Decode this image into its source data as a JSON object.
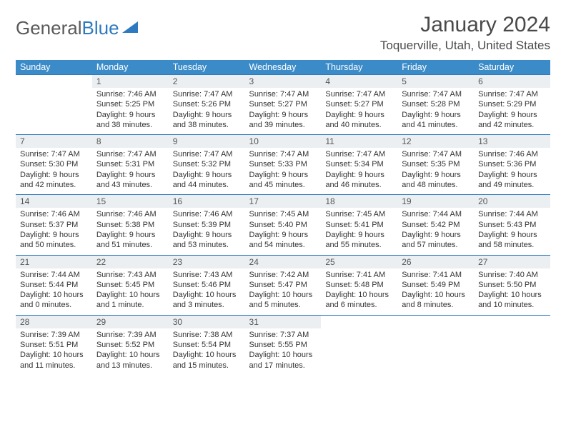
{
  "logo": {
    "word1": "General",
    "word2": "Blue"
  },
  "title": "January 2024",
  "location": "Toquerville, Utah, United States",
  "colors": {
    "header_bg": "#3b8bc9",
    "row_rule": "#2e7ac0",
    "daynum_bg": "#eceff1",
    "text": "#333333",
    "logo_gray": "#5a5a5a"
  },
  "day_headers": [
    "Sunday",
    "Monday",
    "Tuesday",
    "Wednesday",
    "Thursday",
    "Friday",
    "Saturday"
  ],
  "weeks": [
    [
      null,
      {
        "n": "1",
        "sr": "7:46 AM",
        "ss": "5:25 PM",
        "dl": "9 hours and 38 minutes."
      },
      {
        "n": "2",
        "sr": "7:47 AM",
        "ss": "5:26 PM",
        "dl": "9 hours and 38 minutes."
      },
      {
        "n": "3",
        "sr": "7:47 AM",
        "ss": "5:27 PM",
        "dl": "9 hours and 39 minutes."
      },
      {
        "n": "4",
        "sr": "7:47 AM",
        "ss": "5:27 PM",
        "dl": "9 hours and 40 minutes."
      },
      {
        "n": "5",
        "sr": "7:47 AM",
        "ss": "5:28 PM",
        "dl": "9 hours and 41 minutes."
      },
      {
        "n": "6",
        "sr": "7:47 AM",
        "ss": "5:29 PM",
        "dl": "9 hours and 42 minutes."
      }
    ],
    [
      {
        "n": "7",
        "sr": "7:47 AM",
        "ss": "5:30 PM",
        "dl": "9 hours and 42 minutes."
      },
      {
        "n": "8",
        "sr": "7:47 AM",
        "ss": "5:31 PM",
        "dl": "9 hours and 43 minutes."
      },
      {
        "n": "9",
        "sr": "7:47 AM",
        "ss": "5:32 PM",
        "dl": "9 hours and 44 minutes."
      },
      {
        "n": "10",
        "sr": "7:47 AM",
        "ss": "5:33 PM",
        "dl": "9 hours and 45 minutes."
      },
      {
        "n": "11",
        "sr": "7:47 AM",
        "ss": "5:34 PM",
        "dl": "9 hours and 46 minutes."
      },
      {
        "n": "12",
        "sr": "7:47 AM",
        "ss": "5:35 PM",
        "dl": "9 hours and 48 minutes."
      },
      {
        "n": "13",
        "sr": "7:46 AM",
        "ss": "5:36 PM",
        "dl": "9 hours and 49 minutes."
      }
    ],
    [
      {
        "n": "14",
        "sr": "7:46 AM",
        "ss": "5:37 PM",
        "dl": "9 hours and 50 minutes."
      },
      {
        "n": "15",
        "sr": "7:46 AM",
        "ss": "5:38 PM",
        "dl": "9 hours and 51 minutes."
      },
      {
        "n": "16",
        "sr": "7:46 AM",
        "ss": "5:39 PM",
        "dl": "9 hours and 53 minutes."
      },
      {
        "n": "17",
        "sr": "7:45 AM",
        "ss": "5:40 PM",
        "dl": "9 hours and 54 minutes."
      },
      {
        "n": "18",
        "sr": "7:45 AM",
        "ss": "5:41 PM",
        "dl": "9 hours and 55 minutes."
      },
      {
        "n": "19",
        "sr": "7:44 AM",
        "ss": "5:42 PM",
        "dl": "9 hours and 57 minutes."
      },
      {
        "n": "20",
        "sr": "7:44 AM",
        "ss": "5:43 PM",
        "dl": "9 hours and 58 minutes."
      }
    ],
    [
      {
        "n": "21",
        "sr": "7:44 AM",
        "ss": "5:44 PM",
        "dl": "10 hours and 0 minutes."
      },
      {
        "n": "22",
        "sr": "7:43 AM",
        "ss": "5:45 PM",
        "dl": "10 hours and 1 minute."
      },
      {
        "n": "23",
        "sr": "7:43 AM",
        "ss": "5:46 PM",
        "dl": "10 hours and 3 minutes."
      },
      {
        "n": "24",
        "sr": "7:42 AM",
        "ss": "5:47 PM",
        "dl": "10 hours and 5 minutes."
      },
      {
        "n": "25",
        "sr": "7:41 AM",
        "ss": "5:48 PM",
        "dl": "10 hours and 6 minutes."
      },
      {
        "n": "26",
        "sr": "7:41 AM",
        "ss": "5:49 PM",
        "dl": "10 hours and 8 minutes."
      },
      {
        "n": "27",
        "sr": "7:40 AM",
        "ss": "5:50 PM",
        "dl": "10 hours and 10 minutes."
      }
    ],
    [
      {
        "n": "28",
        "sr": "7:39 AM",
        "ss": "5:51 PM",
        "dl": "10 hours and 11 minutes."
      },
      {
        "n": "29",
        "sr": "7:39 AM",
        "ss": "5:52 PM",
        "dl": "10 hours and 13 minutes."
      },
      {
        "n": "30",
        "sr": "7:38 AM",
        "ss": "5:54 PM",
        "dl": "10 hours and 15 minutes."
      },
      {
        "n": "31",
        "sr": "7:37 AM",
        "ss": "5:55 PM",
        "dl": "10 hours and 17 minutes."
      },
      null,
      null,
      null
    ]
  ],
  "labels": {
    "sunrise": "Sunrise: ",
    "sunset": "Sunset: ",
    "daylight": "Daylight: "
  }
}
